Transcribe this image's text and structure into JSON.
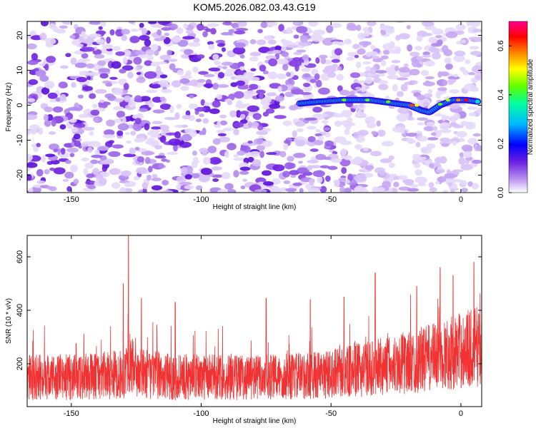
{
  "title": "KOM5.2026.082.03.43.G19",
  "chart_data": [
    {
      "type": "heatmap",
      "title": "KOM5.2026.082.03.43.G19",
      "xlabel": "Height of straight line (km)",
      "ylabel": "Frequency (Hz)",
      "xlim": [
        -167,
        8
      ],
      "ylim": [
        -25,
        24
      ],
      "xticks": [
        -150,
        -100,
        -50,
        0
      ],
      "yticks": [
        -20,
        -10,
        0,
        10,
        20
      ],
      "colorbar": {
        "label": "Normalized spectral amplitude",
        "range": [
          0.0,
          0.7
        ],
        "ticks": [
          0.0,
          0.2,
          0.4,
          0.6
        ],
        "colors": [
          "#ffffff",
          "#b890f0",
          "#6a1ee0",
          "#0000ff",
          "#00b8ff",
          "#00ffa0",
          "#60ff00",
          "#ffff00",
          "#ff8000",
          "#ff0000",
          "#ff0090"
        ]
      },
      "ridge": {
        "description": "signal trace",
        "points": [
          [
            -62,
            0.5
          ],
          [
            -55,
            1
          ],
          [
            -45,
            1.5
          ],
          [
            -35,
            1.5
          ],
          [
            -25,
            0.5
          ],
          [
            -20,
            0
          ],
          [
            -15,
            -1.5
          ],
          [
            -12,
            -2
          ],
          [
            -8,
            0
          ],
          [
            -3,
            1.5
          ],
          [
            2,
            1.5
          ],
          [
            7,
            1
          ]
        ]
      }
    },
    {
      "type": "line",
      "xlabel": "Height of straight line (km)",
      "ylabel": "SNR (10 * v/v)",
      "xlim": [
        -167,
        8
      ],
      "ylim": [
        40,
        680
      ],
      "xticks": [
        -150,
        -100,
        -50,
        0
      ],
      "yticks": [
        200,
        400,
        600
      ],
      "series": [
        {
          "name": "SNR",
          "color": "#f03232",
          "envelope_x": [
            -167,
            -150,
            -130,
            -128,
            -125,
            -110,
            -90,
            -70,
            -50,
            -40,
            -30,
            -20,
            -10,
            0,
            8
          ],
          "envelope_mean": [
            150,
            150,
            160,
            210,
            165,
            150,
            150,
            150,
            160,
            175,
            190,
            205,
            225,
            250,
            270
          ],
          "peaks": [
            [
              -128,
              680
            ],
            [
              -130,
              500
            ],
            [
              -123,
              445
            ],
            [
              -110,
              430
            ],
            [
              -75,
              445
            ],
            [
              -58,
              440
            ],
            [
              -45,
              450
            ],
            [
              -33,
              540
            ],
            [
              -17,
              490
            ],
            [
              -8,
              560
            ],
            [
              -3,
              530
            ],
            [
              5,
              580
            ]
          ]
        }
      ]
    }
  ]
}
